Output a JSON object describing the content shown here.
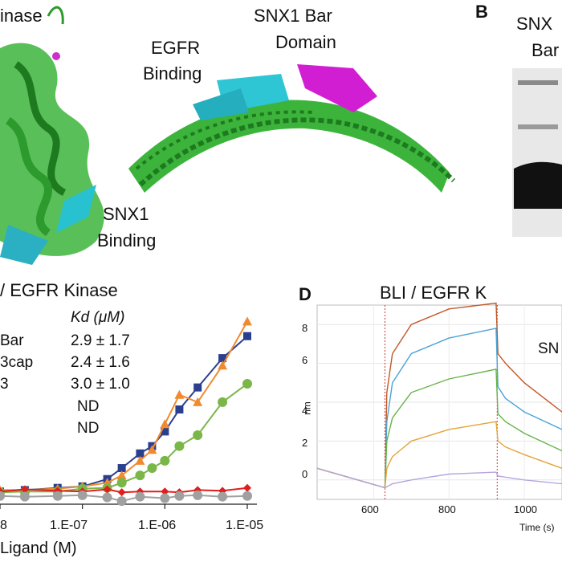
{
  "panelA": {
    "kinase_label": "inase",
    "egfr_binding_line1": "EGFR",
    "egfr_binding_line2": "Binding",
    "snx1_bar_line1": "SNX1 Bar",
    "snx1_bar_line2": "Domain",
    "snx1_binding_line1": "SNX1",
    "snx1_binding_line2": "Binding"
  },
  "panelB": {
    "letter": "B",
    "label_line1": "SNX",
    "label_line2": "Bar"
  },
  "panelC": {
    "title": "/ EGFR Kinase",
    "kd_header": "Kd (μM)",
    "rows": [
      {
        "name": "Bar",
        "kd": "2.9 ± 1.7"
      },
      {
        "name": "3cap",
        "kd": "2.4 ± 1.6"
      },
      {
        "name": "3",
        "kd": "3.0 ± 1.0"
      },
      {
        "name": "",
        "kd": "ND"
      },
      {
        "name": "",
        "kd": "ND"
      }
    ],
    "xlabel": "Ligand (M)",
    "x_ticks": [
      "8",
      "1.E-07",
      "1.E-06",
      "1.E-05"
    ]
  },
  "panelD": {
    "letter": "D",
    "title": "BLI / EGFR K",
    "xlabel": "Time (s)",
    "ylabel": "nm",
    "series_label": "SN",
    "y_ticks": [
      "8",
      "6",
      "4",
      "2",
      "0"
    ],
    "x_ticks": [
      "600",
      "800",
      "1000"
    ]
  },
  "chart_data": [
    {
      "type": "scatter",
      "title": "/ EGFR Kinase",
      "xlabel": "Ligand (M)",
      "x_scale": "log",
      "series": [
        {
          "color": "#2b3f8f",
          "marker": "square",
          "x": [
            1e-08,
            2e-08,
            5e-08,
            1e-07,
            2e-07,
            3e-07,
            5e-07,
            7e-07,
            1e-06,
            1.5e-06,
            2.5e-06,
            5e-06,
            1e-05
          ],
          "y": [
            0.3,
            0.5,
            0.8,
            1.0,
            2.0,
            3.5,
            5.5,
            6.5,
            8.5,
            11.5,
            14.5,
            18.5,
            21.5
          ]
        },
        {
          "color": "#f08a2e",
          "marker": "triangle",
          "x": [
            1e-08,
            2e-08,
            5e-08,
            1e-07,
            2e-07,
            3e-07,
            5e-07,
            7e-07,
            1e-06,
            1.5e-06,
            2.5e-06,
            5e-06,
            1e-05
          ],
          "y": [
            0.5,
            0.5,
            0.7,
            1.0,
            1.5,
            2.5,
            4.5,
            6.0,
            9.5,
            13.5,
            12.5,
            17.5,
            23.5
          ]
        },
        {
          "color": "#7ab648",
          "marker": "circle",
          "x": [
            1e-08,
            2e-08,
            5e-08,
            1e-07,
            2e-07,
            3e-07,
            5e-07,
            7e-07,
            1e-06,
            1.5e-06,
            2.5e-06,
            5e-06,
            1e-05
          ],
          "y": [
            0.2,
            0.3,
            0.3,
            0.7,
            0.8,
            1.5,
            2.5,
            3.5,
            4.5,
            6.5,
            8.0,
            12.5,
            15.0
          ]
        },
        {
          "color": "#e01e1e",
          "marker": "diamond",
          "x": [
            1e-08,
            2e-08,
            5e-08,
            1e-07,
            2e-07,
            3e-07,
            5e-07,
            1e-06,
            1.5e-06,
            2.5e-06,
            5e-06,
            1e-05
          ],
          "y": [
            0.3,
            0.6,
            0.4,
            0.3,
            0.6,
            0.2,
            0.3,
            0.3,
            0.2,
            0.5,
            0.4,
            0.8
          ]
        },
        {
          "color": "#a0a0a0",
          "marker": "circle",
          "x": [
            1e-08,
            2e-08,
            5e-08,
            1e-07,
            2e-07,
            3e-07,
            5e-07,
            1e-06,
            1.5e-06,
            2.5e-06,
            5e-06,
            1e-05
          ],
          "y": [
            -0.3,
            -0.4,
            -0.3,
            -0.2,
            -0.5,
            -1.0,
            -0.4,
            -0.6,
            -0.3,
            -0.2,
            -0.4,
            -0.3
          ]
        }
      ]
    },
    {
      "type": "line",
      "title": "BLI / EGFR K",
      "xlabel": "Time (s)",
      "ylabel": "nm",
      "xlim": [
        450,
        1100
      ],
      "ylim": [
        -1,
        9
      ],
      "series": [
        {
          "color": "#c0582a",
          "x": [
            450,
            630,
            635,
            650,
            700,
            800,
            925,
            930,
            950,
            1000,
            1100
          ],
          "y": [
            0.6,
            -0.4,
            4.5,
            6.5,
            8.0,
            8.8,
            9.1,
            6.5,
            6.0,
            5.0,
            3.5
          ]
        },
        {
          "color": "#4aa3d6",
          "x": [
            450,
            630,
            635,
            650,
            700,
            800,
            925,
            930,
            950,
            1000,
            1100
          ],
          "y": [
            0.6,
            -0.4,
            3.0,
            5.0,
            6.5,
            7.3,
            7.8,
            4.8,
            4.2,
            3.5,
            2.6
          ]
        },
        {
          "color": "#67b34a",
          "x": [
            450,
            630,
            635,
            650,
            700,
            800,
            925,
            930,
            950,
            1000,
            1100
          ],
          "y": [
            0.6,
            -0.4,
            2.0,
            3.2,
            4.5,
            5.2,
            5.7,
            3.4,
            3.0,
            2.4,
            1.5
          ]
        },
        {
          "color": "#e5a43a",
          "x": [
            450,
            630,
            635,
            650,
            700,
            800,
            925,
            930,
            950,
            1000,
            1100
          ],
          "y": [
            0.6,
            -0.4,
            0.6,
            1.2,
            2.0,
            2.6,
            3.0,
            2.0,
            1.7,
            1.3,
            0.6
          ]
        },
        {
          "color": "#b6a6e0",
          "x": [
            450,
            630,
            650,
            700,
            800,
            925,
            930,
            1000,
            1100
          ],
          "y": [
            0.6,
            -0.4,
            -0.2,
            0.0,
            0.3,
            0.4,
            0.2,
            0.0,
            -0.2
          ]
        }
      ]
    }
  ]
}
